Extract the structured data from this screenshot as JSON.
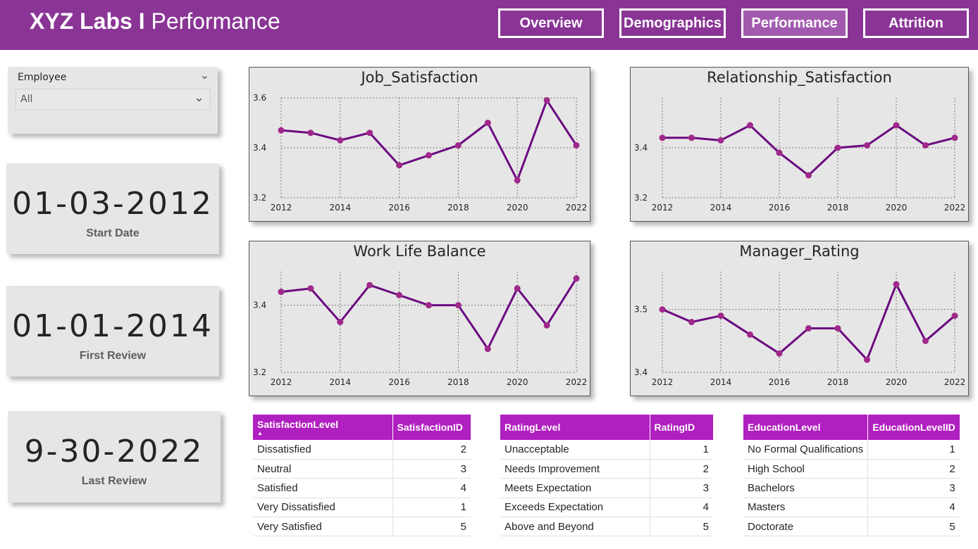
{
  "header": {
    "brand_bold": "XYZ Labs I",
    "brand_light": "Performance",
    "nav": [
      "Overview",
      "Demographics",
      "Performance",
      "Attrition"
    ],
    "active_nav": "Performance",
    "bg_color": "#8a3596"
  },
  "slicer": {
    "title": "Employee",
    "value": "All"
  },
  "kpis": [
    {
      "value": "01-03-2012",
      "label": "Start Date"
    },
    {
      "value": "01-01-2014",
      "label": "First Review"
    },
    {
      "value": "9-30-2022",
      "label": "Last Review"
    }
  ],
  "chart_data": [
    {
      "type": "line",
      "title": "Job_Satisfaction",
      "x": [
        2012,
        2013,
        2014,
        2015,
        2016,
        2017,
        2018,
        2019,
        2020,
        2021,
        2022
      ],
      "values": [
        3.47,
        3.46,
        3.43,
        3.46,
        3.33,
        3.37,
        3.41,
        3.5,
        3.27,
        3.59,
        3.41
      ],
      "ylim": [
        3.2,
        3.6
      ],
      "yticks": [
        "3.2",
        "3.4",
        "3.6"
      ],
      "xticks": [
        "2012",
        "2014",
        "2016",
        "2018",
        "2020",
        "2022"
      ],
      "color": "#6b0a80",
      "marker_color": "#a0288a",
      "grid": true
    },
    {
      "type": "line",
      "title": "Relationship_Satisfaction",
      "x": [
        2012,
        2013,
        2014,
        2015,
        2016,
        2017,
        2018,
        2019,
        2020,
        2021,
        2022
      ],
      "values": [
        3.44,
        3.44,
        3.43,
        3.49,
        3.38,
        3.29,
        3.4,
        3.41,
        3.49,
        3.41,
        3.44
      ],
      "ylim": [
        3.2,
        3.6
      ],
      "yticks": [
        "3.2",
        "3.4"
      ],
      "xticks": [
        "2012",
        "2014",
        "2016",
        "2018",
        "2020",
        "2022"
      ],
      "color": "#6b0a80",
      "marker_color": "#a0288a",
      "grid": true
    },
    {
      "type": "line",
      "title": "Work Life Balance",
      "x": [
        2012,
        2013,
        2014,
        2015,
        2016,
        2017,
        2018,
        2019,
        2020,
        2021,
        2022
      ],
      "values": [
        3.44,
        3.45,
        3.35,
        3.46,
        3.43,
        3.4,
        3.4,
        3.27,
        3.45,
        3.34,
        3.48
      ],
      "ylim": [
        3.2,
        3.5
      ],
      "yticks": [
        "3.2",
        "3.4"
      ],
      "xticks": [
        "2012",
        "2014",
        "2016",
        "2018",
        "2020",
        "2022"
      ],
      "color": "#6b0a80",
      "marker_color": "#a0288a",
      "grid": true
    },
    {
      "type": "line",
      "title": "Manager_Rating",
      "x": [
        2012,
        2013,
        2014,
        2015,
        2016,
        2017,
        2018,
        2019,
        2020,
        2021,
        2022
      ],
      "values": [
        3.5,
        3.48,
        3.49,
        3.46,
        3.43,
        3.47,
        3.47,
        3.42,
        3.54,
        3.45,
        3.49
      ],
      "ylim": [
        3.4,
        3.56
      ],
      "yticks": [
        "3.4",
        "3.5"
      ],
      "xticks": [
        "2012",
        "2014",
        "2016",
        "2018",
        "2020",
        "2022"
      ],
      "color": "#6b0a80",
      "marker_color": "#a0288a",
      "grid": true
    }
  ],
  "tables": [
    {
      "headers": [
        "SatisfactionLevel",
        "SatisfactionID"
      ],
      "sorted": true,
      "rows": [
        [
          "Dissatisfied",
          "2"
        ],
        [
          "Neutral",
          "3"
        ],
        [
          "Satisfied",
          "4"
        ],
        [
          "Very Dissatisfied",
          "1"
        ],
        [
          "Very Satisfied",
          "5"
        ]
      ]
    },
    {
      "headers": [
        "RatingLevel",
        "RatingID"
      ],
      "sorted": false,
      "rows": [
        [
          "Unacceptable",
          "1"
        ],
        [
          "Needs Improvement",
          "2"
        ],
        [
          "Meets Expectation",
          "3"
        ],
        [
          "Exceeds Expectation",
          "4"
        ],
        [
          "Above and Beyond",
          "5"
        ]
      ]
    },
    {
      "headers": [
        "EducationLevel",
        "EducationLevelID"
      ],
      "sorted": false,
      "rows": [
        [
          "No Formal Qualifications",
          "1"
        ],
        [
          "High School",
          "2"
        ],
        [
          "Bachelors",
          "3"
        ],
        [
          "Masters",
          "4"
        ],
        [
          "Doctorate",
          "5"
        ]
      ]
    }
  ]
}
